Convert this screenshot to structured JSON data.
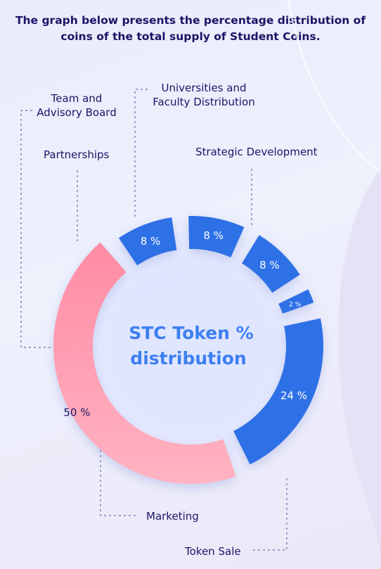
{
  "headline": {
    "line1": "The graph below presents the percentage distribution of",
    "line2": "coins of the total supply of Student Coins."
  },
  "chart_data": {
    "type": "pie",
    "center_label": {
      "line1": "STC Token %",
      "line2": "distribution"
    },
    "categories": [
      "Strategic Development",
      "Token Sale",
      "Marketing",
      "Team and Advisory Board",
      "Partnerships",
      "Universities and Faculty Distribution"
    ],
    "values": [
      24,
      50,
      8,
      8,
      8,
      2
    ],
    "value_labels": [
      "24 %",
      "50 %",
      "8 %",
      "8 %",
      "8 %",
      "2 %"
    ],
    "legend_labels": {
      "strategic": "Strategic Development",
      "token_sale": "Token Sale",
      "marketing": "Marketing",
      "team_line1": "Team and",
      "team_line2": "Advisory Board",
      "partnerships": "Partnerships",
      "universities_line1": "Universities and",
      "universities_line2": "Faculty Distribution"
    },
    "colors": {
      "blue": "#2f6fe6",
      "pink_start": "#ff8ba4",
      "pink_end": "#ffb0c0",
      "center_text": "#3d7ff2",
      "label_text": "#1c1466",
      "leader_line": "#6e6aa8"
    }
  }
}
